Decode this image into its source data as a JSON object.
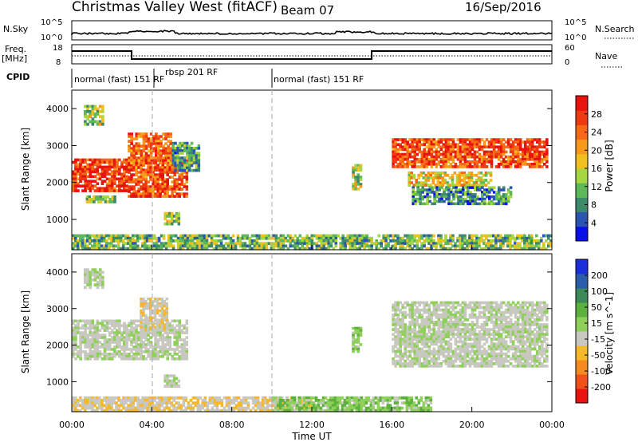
{
  "header": {
    "station": "Christmas Valley West (fitACF)",
    "beam": "Beam 07",
    "date": "16/Sep/2016"
  },
  "nsky_panel": {
    "left_label": "N.Sky",
    "left_ticks": [
      "10^5",
      "10^0"
    ],
    "right_ticks": [
      "10^5",
      "10^0"
    ],
    "right_label": "N.Search"
  },
  "freq_panel": {
    "left_label_1": "Freq.",
    "left_label_2": "[MHz]",
    "left_ticks": [
      "18",
      "8"
    ],
    "right_ticks": [
      "60",
      "0"
    ],
    "right_label": "Nave"
  },
  "cpid_panel": {
    "label": "CPID",
    "segments": [
      "normal (fast) 151 RF",
      "rbsp 201 RF",
      "normal (fast) 151 RF"
    ]
  },
  "colors": {
    "power_scale": [
      "#0a10e8",
      "#2a55b0",
      "#3d8a6a",
      "#5db85a",
      "#a6d640",
      "#f0c020",
      "#f79a1c",
      "#f46a16",
      "#ee3a12",
      "#e8120e"
    ],
    "velocity_scale": [
      "#e8120e",
      "#f0501a",
      "#f48a20",
      "#f5b82a",
      "#c8c8c0",
      "#8fd05a",
      "#5cb03e",
      "#3c8a58",
      "#2a5eaa",
      "#1a2fd8"
    ],
    "ground": "#bdbdb8"
  },
  "chart_data": [
    {
      "type": "heatmap",
      "name": "power",
      "ylabel": "Slant Range [km]",
      "y_ticks": [
        "1000",
        "2000",
        "3000",
        "4000"
      ],
      "ylim": [
        180,
        4500
      ],
      "xlim_hours": [
        0,
        24
      ],
      "colorbar_label": "Power [dB]",
      "colorbar_ticks": [
        "4",
        "8",
        "12",
        "16",
        "20",
        "24",
        "28"
      ],
      "colorbar_range": [
        0,
        32
      ],
      "echo_regions": [
        {
          "t_start": 0.0,
          "t_end": 2.8,
          "r_min": 1750,
          "r_max": 2650,
          "level": 28
        },
        {
          "t_start": 0.7,
          "t_end": 2.2,
          "r_min": 1450,
          "r_max": 1650,
          "level": 12
        },
        {
          "t_start": 0.6,
          "t_end": 1.6,
          "r_min": 3550,
          "r_max": 4100,
          "level": 14
        },
        {
          "t_start": 2.8,
          "t_end": 5.8,
          "r_min": 1600,
          "r_max": 2700,
          "level": 26
        },
        {
          "t_start": 2.8,
          "t_end": 5.0,
          "r_min": 2500,
          "r_max": 3350,
          "level": 24
        },
        {
          "t_start": 4.6,
          "t_end": 5.4,
          "r_min": 850,
          "r_max": 1200,
          "level": 14
        },
        {
          "t_start": 5.0,
          "t_end": 6.4,
          "r_min": 2300,
          "r_max": 3100,
          "level": 10
        },
        {
          "t_start": 14.0,
          "t_end": 14.5,
          "r_min": 1800,
          "r_max": 2500,
          "level": 14
        },
        {
          "t_start": 16.0,
          "t_end": 23.8,
          "r_min": 2400,
          "r_max": 3200,
          "level": 26
        },
        {
          "t_start": 16.8,
          "t_end": 21.0,
          "r_min": 1900,
          "r_max": 2300,
          "level": 18
        },
        {
          "t_start": 17.0,
          "t_end": 22.0,
          "r_min": 1400,
          "r_max": 1900,
          "level": 8
        },
        {
          "t_start": 0.0,
          "t_end": 24.0,
          "r_min": 180,
          "r_max": 600,
          "level": 12
        }
      ]
    },
    {
      "type": "heatmap",
      "name": "velocity",
      "ylabel": "Slant Range [km]",
      "y_ticks": [
        "1000",
        "2000",
        "3000",
        "4000"
      ],
      "ylim": [
        180,
        4500
      ],
      "xlabel": "Time UT",
      "x_ticks": [
        "00:00",
        "04:00",
        "08:00",
        "12:00",
        "16:00",
        "20:00",
        "00:00"
      ],
      "xlim_hours": [
        0,
        24
      ],
      "colorbar_label": "Velocity [m s^-1]",
      "colorbar_ticks": [
        "200",
        "100",
        "50",
        "15",
        "-15",
        "-50",
        "-100",
        "-200"
      ],
      "colorbar_range": [
        -250,
        250
      ],
      "echo_regions": [
        {
          "t_start": 0.0,
          "t_end": 2.8,
          "r_min": 1600,
          "r_max": 2700,
          "velocity": 0
        },
        {
          "t_start": 0.6,
          "t_end": 1.6,
          "r_min": 3550,
          "r_max": 4100,
          "velocity": 0
        },
        {
          "t_start": 2.8,
          "t_end": 5.8,
          "r_min": 1600,
          "r_max": 2700,
          "velocity": 0
        },
        {
          "t_start": 3.4,
          "t_end": 4.8,
          "r_min": 2400,
          "r_max": 3300,
          "velocity": -40
        },
        {
          "t_start": 4.6,
          "t_end": 5.4,
          "r_min": 850,
          "r_max": 1200,
          "velocity": 0
        },
        {
          "t_start": 14.0,
          "t_end": 14.5,
          "r_min": 1800,
          "r_max": 2500,
          "velocity": 30
        },
        {
          "t_start": 16.0,
          "t_end": 23.8,
          "r_min": 1400,
          "r_max": 3200,
          "velocity": 0
        },
        {
          "t_start": 0.0,
          "t_end": 12.0,
          "r_min": 180,
          "r_max": 600,
          "velocity": -40
        },
        {
          "t_start": 10.0,
          "t_end": 18.0,
          "r_min": 180,
          "r_max": 600,
          "velocity": 40
        }
      ]
    }
  ]
}
